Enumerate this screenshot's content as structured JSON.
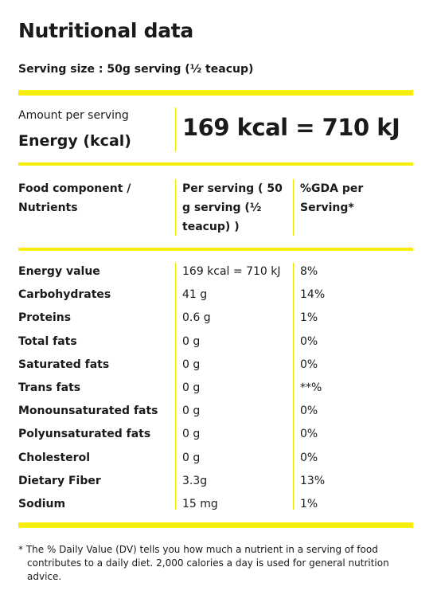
{
  "title": "Nutritional data",
  "serving_size": "Serving size : 50g serving (½ teacup)",
  "amount_per_serving_label": "Amount per serving",
  "energy_label": "Energy (kcal)",
  "energy_value": "169 kcal  =  710 kJ",
  "table": {
    "headers": {
      "component": "Food component / Nutrients",
      "per_serving": "Per serving ( 50 g serving (½ teacup) )",
      "gda": "%GDA per Serving*"
    },
    "rows": [
      {
        "name": "Energy value",
        "amount": "169 kcal = 710 kJ",
        "gda": "8%"
      },
      {
        "name": "Carbohydrates",
        "amount": "41 g",
        "gda": "14%"
      },
      {
        "name": "Proteins",
        "amount": "0.6 g",
        "gda": "1%"
      },
      {
        "name": "Total fats",
        "amount": "0 g",
        "gda": "0%"
      },
      {
        "name": "Saturated fats",
        "amount": "0 g",
        "gda": "0%"
      },
      {
        "name": "Trans fats",
        "amount": "0 g",
        "gda": "**%"
      },
      {
        "name": "Monounsaturated fats",
        "amount": "0 g",
        "gda": "0%"
      },
      {
        "name": "Polyunsaturated fats",
        "amount": "0 g",
        "gda": "0%"
      },
      {
        "name": "Cholesterol",
        "amount": "0 g",
        "gda": "0%"
      },
      {
        "name": "Dietary Fiber",
        "amount": "3.3g",
        "gda": "13%"
      },
      {
        "name": "Sodium",
        "amount": "15 mg",
        "gda": "1%"
      }
    ]
  },
  "footnote": "* The % Daily Value (DV) tells you how much a nutrient in a serving of food contributes to a daily diet. 2,000 calories a day is used for general nutrition advice.",
  "colors": {
    "accent": "#f5ee0a",
    "divider": "#f2e500",
    "text": "#1a1a1a"
  }
}
